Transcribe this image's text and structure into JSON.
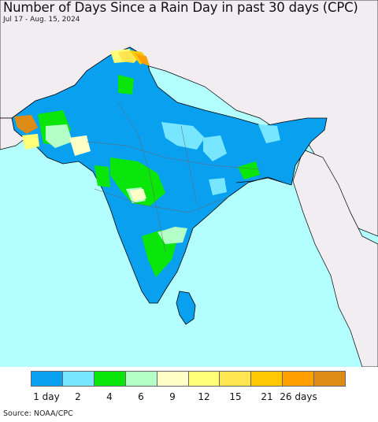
{
  "title": "Number of Days Since a Rain Day in past 30 days (CPC)",
  "subtitle": "Jul 17 - Aug. 15, 2024",
  "source": "Source: NOAA/CPC",
  "colors": {
    "ocean": "#b3ffff",
    "land_outside": "#f1edf1",
    "border": "#000000"
  },
  "legend": {
    "bins": [
      {
        "label": "1 day",
        "color": "#0aa0f0"
      },
      {
        "label": "2",
        "color": "#78e6ff"
      },
      {
        "label": "4",
        "color": "#0ae60a"
      },
      {
        "label": "6",
        "color": "#b4ffc8"
      },
      {
        "label": "9",
        "color": "#ffffc8"
      },
      {
        "label": "12",
        "color": "#ffff78"
      },
      {
        "label": "15",
        "color": "#ffe650"
      },
      {
        "label": "21",
        "color": "#ffc800"
      },
      {
        "label": "26 days",
        "color": "#ffa000"
      },
      {
        "label": "",
        "color": "#dc8c14"
      }
    ]
  }
}
